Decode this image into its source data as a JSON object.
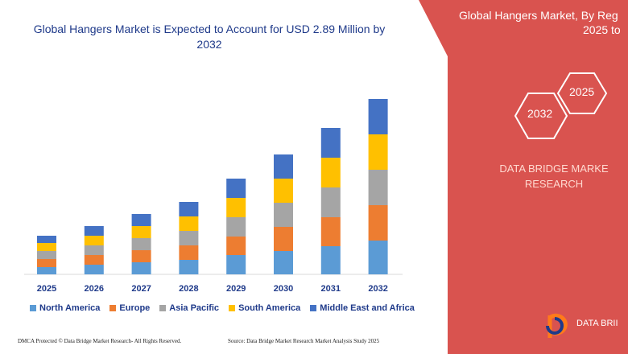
{
  "colors": {
    "north_america": "#5b9bd5",
    "europe": "#ed7d31",
    "asia_pacific": "#a5a5a5",
    "south_america": "#ffc000",
    "middle_east_africa": "#4472c4",
    "panel": "#d9534f",
    "title": "#1f3a8a"
  },
  "chart_data": {
    "type": "bar",
    "stacked": true,
    "title": "Global Hangers Market is Expected to Account for USD 2.89 Million by 2032",
    "categories": [
      "2025",
      "2026",
      "2027",
      "2028",
      "2029",
      "2030",
      "2031",
      "2032"
    ],
    "series": [
      {
        "name": "North America",
        "values": [
          9,
          12,
          15,
          18,
          24,
          29,
          35,
          42
        ]
      },
      {
        "name": "Europe",
        "values": [
          10,
          12,
          15,
          18,
          23,
          30,
          36,
          44
        ]
      },
      {
        "name": "Asia Pacific",
        "values": [
          10,
          12,
          15,
          18,
          24,
          30,
          37,
          44
        ]
      },
      {
        "name": "South America",
        "values": [
          10,
          12,
          15,
          18,
          24,
          30,
          37,
          44
        ]
      },
      {
        "name": "Middle East and Africa",
        "values": [
          9,
          12,
          15,
          18,
          24,
          30,
          37,
          44
        ]
      }
    ],
    "legend_position": "bottom",
    "grid": false
  },
  "legend": {
    "items": [
      "North America",
      "Europe",
      "Asia Pacific",
      "South America",
      "Middle East and Africa"
    ]
  },
  "footer": {
    "dmca": "DMCA Protected © Data Bridge Market Research- All Rights Reserved.",
    "source": "Source: Data Bridge Market Research Market Analysis Study 2025"
  },
  "panel": {
    "title": "Global Hangers Market, By Reg",
    "years": "2025 to",
    "hex_2025": "2025",
    "hex_2032": "2032",
    "brand_line1": "DATA BRIDGE MARKE",
    "brand_line2": "RESEARCH",
    "logo_text": "DATA BRII"
  }
}
